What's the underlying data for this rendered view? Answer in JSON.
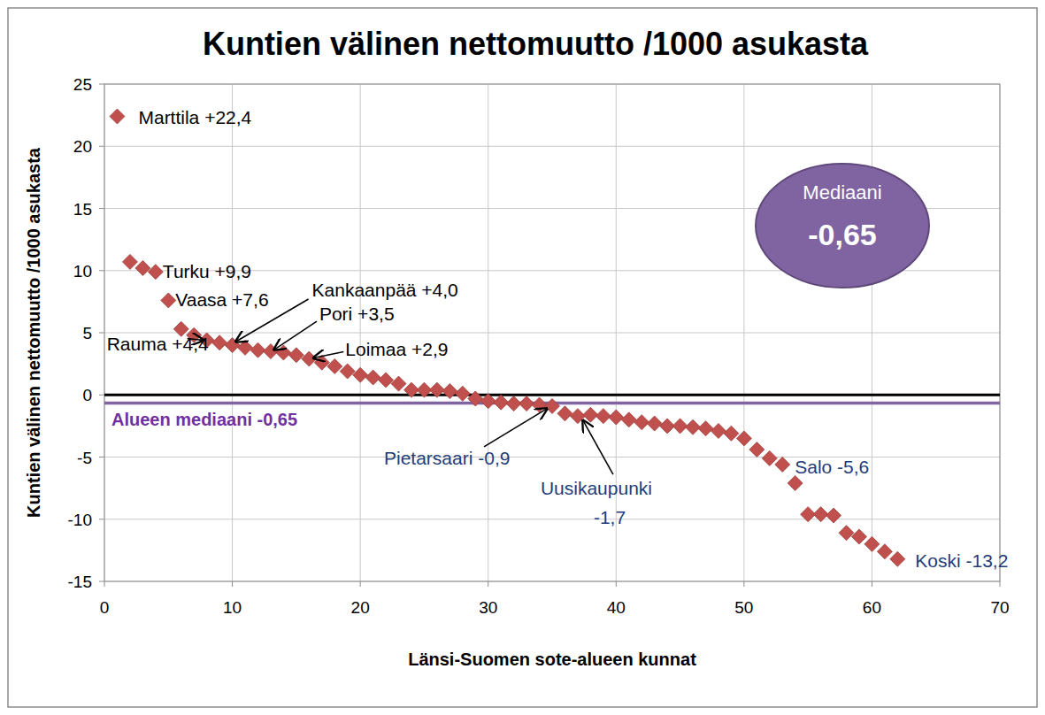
{
  "chart_data": {
    "type": "scatter",
    "title": "Kuntien välinen nettomuutto /1000 asukasta",
    "x_label": "Länsi-Suomen sote-alueen kunnat",
    "y_label": "Kuntien välinen nettomuutto /1000 asukasta",
    "x": [
      1,
      2,
      3,
      4,
      5,
      6,
      7,
      8,
      9,
      10,
      11,
      12,
      13,
      14,
      15,
      16,
      17,
      18,
      19,
      20,
      21,
      22,
      23,
      24,
      25,
      26,
      27,
      28,
      29,
      30,
      31,
      32,
      33,
      34,
      35,
      36,
      37,
      38,
      39,
      40,
      41,
      42,
      43,
      44,
      45,
      46,
      47,
      48,
      49,
      50,
      51,
      52,
      53,
      54,
      55,
      56,
      57,
      58,
      59,
      60,
      61,
      62
    ],
    "values": [
      22.4,
      10.7,
      10.2,
      9.9,
      7.6,
      5.3,
      4.8,
      4.4,
      4.2,
      4.0,
      3.8,
      3.6,
      3.5,
      3.4,
      3.2,
      2.9,
      2.6,
      2.3,
      1.9,
      1.6,
      1.4,
      1.2,
      0.9,
      0.4,
      0.4,
      0.4,
      0.3,
      0.1,
      -0.3,
      -0.5,
      -0.6,
      -0.7,
      -0.7,
      -0.8,
      -0.9,
      -1.5,
      -1.7,
      -1.6,
      -1.7,
      -1.8,
      -2.0,
      -2.2,
      -2.3,
      -2.5,
      -2.5,
      -2.6,
      -2.7,
      -2.9,
      -3.1,
      -3.5,
      -4.4,
      -5.1,
      -5.6,
      -7.1,
      -9.6,
      -9.6,
      -9.7,
      -11.1,
      -11.4,
      -12.0,
      -12.6,
      -13.2
    ],
    "color": "#c0504d",
    "marker": "diamond",
    "xlim": [
      0,
      70
    ],
    "xticks": [
      0,
      10,
      20,
      30,
      40,
      50,
      60,
      70
    ],
    "ylim": [
      -15,
      25
    ],
    "yticks": [
      -15,
      -10,
      -5,
      0,
      5,
      10,
      15,
      20,
      25
    ],
    "grid": true,
    "median": {
      "value": -0.65,
      "label": "Alueen mediaani -0,65",
      "box_title": "Mediaani",
      "box_value": "-0,65"
    },
    "annotations": [
      {
        "text": "Marttila +22,4",
        "x": 1,
        "y": 22.4
      },
      {
        "text": "Turku +9,9",
        "x": 4,
        "y": 9.9
      },
      {
        "text": "Vaasa +7,6",
        "x": 5,
        "y": 7.6
      },
      {
        "text": "Kankaanpää +4,0",
        "x": 10,
        "y": 4.0
      },
      {
        "text": "Pori +3,5",
        "x": 13,
        "y": 3.5
      },
      {
        "text": "Loimaa +2,9",
        "x": 16,
        "y": 2.9
      },
      {
        "text": "Rauma +4,4",
        "x": 8,
        "y": 4.4
      },
      {
        "text": "Pietarsaari -0,9",
        "x": 35,
        "y": -0.9
      },
      {
        "text": "Uusikaupunki -1,7",
        "x": 37,
        "y": -1.7
      },
      {
        "text": "Salo -5,6",
        "x": 53,
        "y": -5.6
      },
      {
        "text": "Koski -13,2",
        "x": 62,
        "y": -13.2
      }
    ]
  }
}
